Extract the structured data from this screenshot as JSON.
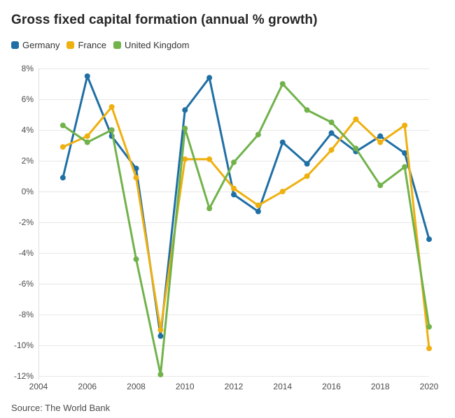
{
  "header": {
    "title": "Gross fixed capital formation (annual % growth)"
  },
  "legend": [
    {
      "label": "Germany",
      "color": "#1f6fa4"
    },
    {
      "label": "France",
      "color": "#efb00f"
    },
    {
      "label": "United Kingdom",
      "color": "#71b24b"
    }
  ],
  "chart_data": {
    "type": "line",
    "title": "Gross fixed capital formation (annual % growth)",
    "x": [
      2005,
      2006,
      2007,
      2008,
      2009,
      2010,
      2011,
      2012,
      2013,
      2014,
      2015,
      2016,
      2017,
      2018,
      2019,
      2020
    ],
    "series": [
      {
        "name": "Germany",
        "color": "#1f6fa4",
        "values": [
          0.9,
          7.5,
          3.6,
          1.5,
          -9.4,
          5.3,
          7.4,
          -0.2,
          -1.3,
          3.2,
          1.8,
          3.8,
          2.6,
          3.6,
          2.5,
          -3.1
        ]
      },
      {
        "name": "France",
        "color": "#efb00f",
        "values": [
          2.9,
          3.6,
          5.5,
          0.9,
          -9.0,
          2.1,
          2.1,
          0.2,
          -0.9,
          0.0,
          1.0,
          2.7,
          4.7,
          3.2,
          4.3,
          -10.2
        ]
      },
      {
        "name": "United Kingdom",
        "color": "#71b24b",
        "values": [
          4.3,
          3.2,
          4.0,
          -4.4,
          -11.9,
          4.1,
          -1.1,
          1.9,
          3.7,
          7.0,
          5.3,
          4.5,
          2.8,
          0.4,
          1.6,
          -8.8
        ]
      }
    ],
    "xlabel": "",
    "ylabel": "",
    "xlim": [
      2004,
      2020
    ],
    "ylim": [
      -12,
      8
    ],
    "x_ticks": [
      2004,
      2006,
      2008,
      2010,
      2012,
      2014,
      2016,
      2018,
      2020
    ],
    "y_ticks": [
      8,
      6,
      4,
      2,
      0,
      -2,
      -4,
      -6,
      -8,
      -10,
      -12
    ],
    "y_tick_labels": [
      "8%",
      "6%",
      "4%",
      "2%",
      "0%",
      "-2%",
      "-4%",
      "-6%",
      "-8%",
      "-10%",
      "-12%"
    ],
    "grid": true,
    "legend_position": "top-left",
    "marker": "circle"
  },
  "footer": {
    "source": "Source: The World Bank"
  }
}
